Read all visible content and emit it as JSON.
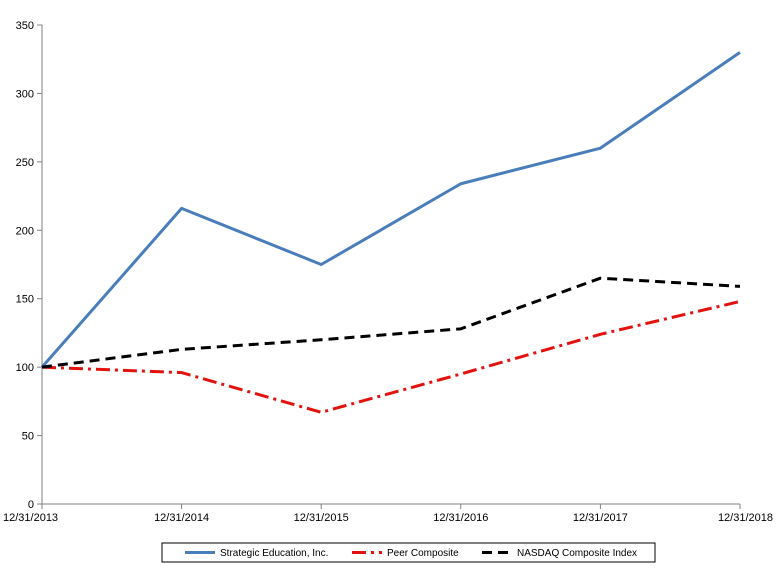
{
  "chart_data": {
    "type": "line",
    "title": "",
    "xlabel": "",
    "ylabel": "",
    "categories": [
      "12/31/2013",
      "12/31/2014",
      "12/31/2015",
      "12/31/2016",
      "12/31/2017",
      "12/31/2018"
    ],
    "yticks": [
      "0",
      "50",
      "100",
      "150",
      "200",
      "250",
      "300",
      "350"
    ],
    "ylim": [
      0,
      350
    ],
    "grid": false,
    "legend_position": "bottom",
    "series": [
      {
        "name": "Strategic Education, Inc.",
        "values": [
          100,
          216,
          175,
          234,
          260,
          330
        ],
        "color": "#4a7ebb",
        "style": "solid"
      },
      {
        "name": "Peer Composite",
        "values": [
          100,
          96,
          67,
          95,
          124,
          148
        ],
        "color": "#e2130f",
        "style": "dashdot"
      },
      {
        "name": "NASDAQ Composite Index",
        "values": [
          100,
          113,
          120,
          128,
          165,
          159
        ],
        "color": "#000000",
        "style": "dashed"
      }
    ]
  }
}
